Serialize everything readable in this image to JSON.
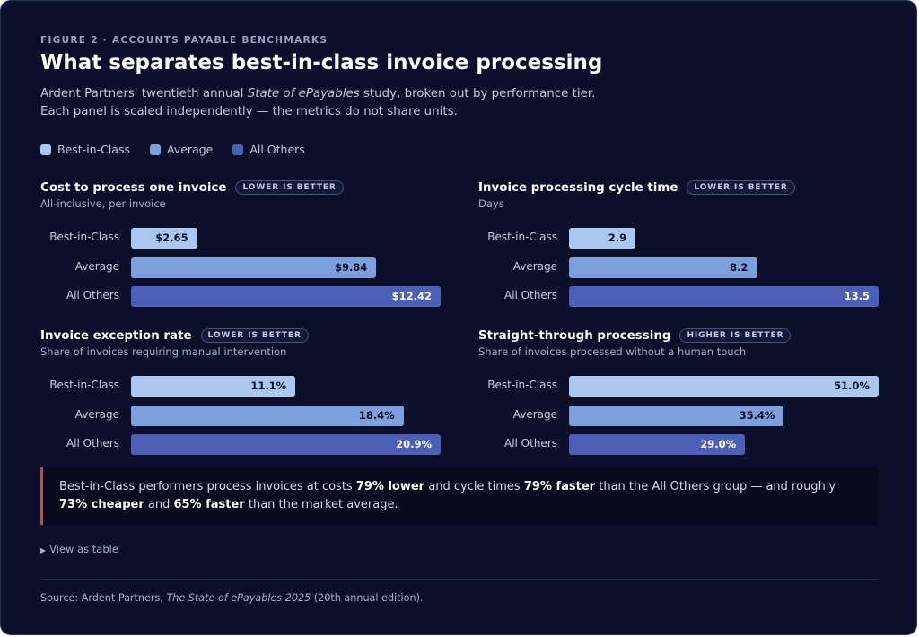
{
  "header": {
    "eyebrow": "FIGURE 2 · ACCOUNTS PAYABLE BENCHMARKS",
    "title": "What separates best-in-class invoice processing",
    "subtitle_line1_pre": "Ardent Partners' twentieth annual ",
    "subtitle_line1_italic": "State of ePayables",
    "subtitle_line1_post": " study, broken out by performance tier.",
    "subtitle_line2": "Each panel is scaled independently — the metrics do not share units."
  },
  "legend": [
    {
      "label": "Best-in-Class",
      "color": "#a9c7ef"
    },
    {
      "label": "Average",
      "color": "#7d9fdc"
    },
    {
      "label": "All Others",
      "color": "#4b5fb6"
    }
  ],
  "chart_data": [
    {
      "type": "bar",
      "title": "Cost to process one invoice",
      "badge": "LOWER IS BETTER",
      "subtitle": "All-inclusive, per invoice",
      "categories": [
        "Best-in-Class",
        "Average",
        "All Others"
      ],
      "values": [
        2.65,
        9.84,
        12.42
      ],
      "value_labels": [
        "$2.65",
        "$9.84",
        "$12.42"
      ],
      "xlim": [
        0,
        12.42
      ]
    },
    {
      "type": "bar",
      "title": "Invoice processing cycle time",
      "badge": "LOWER IS BETTER",
      "subtitle": "Days",
      "categories": [
        "Best-in-Class",
        "Average",
        "All Others"
      ],
      "values": [
        2.9,
        8.2,
        13.5
      ],
      "value_labels": [
        "2.9",
        "8.2",
        "13.5"
      ],
      "xlim": [
        0,
        13.5
      ]
    },
    {
      "type": "bar",
      "title": "Invoice exception rate",
      "badge": "LOWER IS BETTER",
      "subtitle": "Share of invoices requiring manual intervention",
      "categories": [
        "Best-in-Class",
        "Average",
        "All Others"
      ],
      "values": [
        11.1,
        18.4,
        20.9
      ],
      "value_labels": [
        "11.1%",
        "18.4%",
        "20.9%"
      ],
      "xlim": [
        0,
        20.9
      ]
    },
    {
      "type": "bar",
      "title": "Straight-through processing",
      "badge": "HIGHER IS BETTER",
      "subtitle": "Share of invoices processed without a human touch",
      "categories": [
        "Best-in-Class",
        "Average",
        "All Others"
      ],
      "values": [
        51.0,
        35.4,
        29.0
      ],
      "value_labels": [
        "51.0%",
        "35.4%",
        "29.0%"
      ],
      "xlim": [
        0,
        51.0
      ]
    }
  ],
  "bar_colors": [
    "#a9c7ef",
    "#7d9fdc",
    "#4b5fb6"
  ],
  "bar_text_colors": [
    "#0b0f29",
    "#0b0f29",
    "#ffffff"
  ],
  "callout": {
    "t1": "Best-in-Class performers process invoices at costs ",
    "b1": "79% lower",
    "t2": " and cycle times ",
    "b2": "79% faster",
    "t3": " than the All Others group — and roughly ",
    "b3": "73% cheaper",
    "t4": " and ",
    "b4": "65% faster",
    "t5": " than the market average.",
    "accent_color": "#d0453f"
  },
  "toggle": {
    "arrow": "▶",
    "label": "View as table"
  },
  "source": {
    "pre": "Source: Ardent Partners, ",
    "italic": "The State of ePayables 2025",
    "post": " (20th annual edition)."
  }
}
